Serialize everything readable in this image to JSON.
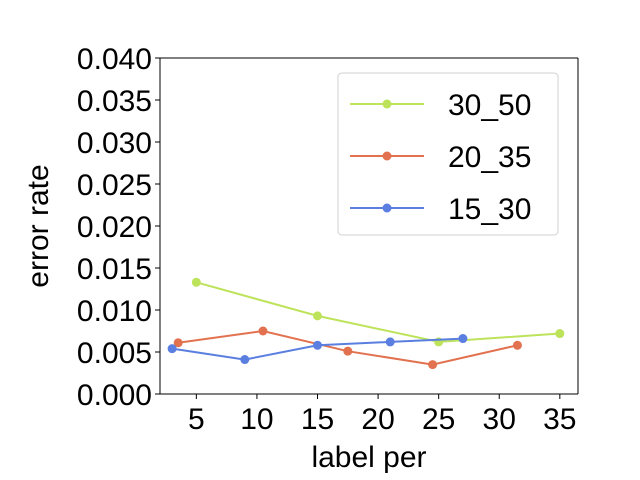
{
  "chart_data": {
    "type": "line",
    "title": "",
    "xlabel": "label per",
    "ylabel": "error rate",
    "xlim": [
      2.0,
      36.5
    ],
    "ylim": [
      0.0,
      0.04
    ],
    "x_ticks": [
      5,
      10,
      15,
      20,
      25,
      30,
      35
    ],
    "x_tick_labels": [
      "5",
      "10",
      "15",
      "20",
      "25",
      "30",
      "35"
    ],
    "y_ticks": [
      0.0,
      0.005,
      0.01,
      0.015,
      0.02,
      0.025,
      0.03,
      0.035,
      0.04
    ],
    "y_tick_labels": [
      "0.000",
      "0.005",
      "0.010",
      "0.015",
      "0.020",
      "0.025",
      "0.030",
      "0.035",
      "0.040"
    ],
    "grid": false,
    "legend_position": "top-right",
    "series": [
      {
        "name": "30_50",
        "color": "#bde35a",
        "points": [
          {
            "x": 5.0,
            "y": 0.0133
          },
          {
            "x": 15.0,
            "y": 0.0093
          },
          {
            "x": 25.0,
            "y": 0.0062
          },
          {
            "x": 35.0,
            "y": 0.0072
          }
        ]
      },
      {
        "name": "20_35",
        "color": "#e2724f",
        "points": [
          {
            "x": 3.5,
            "y": 0.0061
          },
          {
            "x": 10.5,
            "y": 0.0075
          },
          {
            "x": 17.5,
            "y": 0.0051
          },
          {
            "x": 24.5,
            "y": 0.0035
          },
          {
            "x": 31.5,
            "y": 0.0058
          }
        ]
      },
      {
        "name": "15_30",
        "color": "#5b7fe0",
        "points": [
          {
            "x": 3.0,
            "y": 0.0054
          },
          {
            "x": 9.0,
            "y": 0.0041
          },
          {
            "x": 15.0,
            "y": 0.0058
          },
          {
            "x": 21.0,
            "y": 0.0062
          },
          {
            "x": 27.0,
            "y": 0.0066
          }
        ]
      }
    ]
  }
}
